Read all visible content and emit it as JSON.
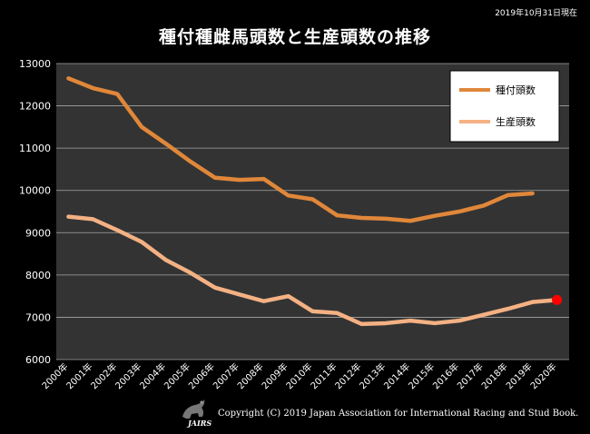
{
  "date_note": "2019年10月31日現在",
  "footer": {
    "copyright": "Copyright (C) 2019 Japan Association for International Racing and Stud Book.",
    "logo_text": "JAIRS"
  },
  "colors": {
    "background": "#000000",
    "plot_background": "#333333",
    "grid": "#a6a6a6",
    "series_1": "#e0873a",
    "series_2": "#f4b183",
    "highlight_point": "#ff0000"
  },
  "chart_data": {
    "type": "line",
    "title": "種付種雌馬頭数と生産頭数の推移",
    "xlabel": "",
    "ylabel": "",
    "categories": [
      "2000年",
      "2001年",
      "2002年",
      "2003年",
      "2004年",
      "2005年",
      "2006年",
      "2007年",
      "2008年",
      "2009年",
      "2010年",
      "2011年",
      "2012年",
      "2013年",
      "2014年",
      "2015年",
      "2016年",
      "2017年",
      "2018年",
      "2019年",
      "2020年"
    ],
    "ylim": [
      6000,
      13000
    ],
    "yticks": [
      6000,
      7000,
      8000,
      9000,
      10000,
      11000,
      12000,
      13000
    ],
    "grid": true,
    "legend_position": "top-right",
    "series": [
      {
        "name": "種付頭数",
        "color": "#e0873a",
        "values": [
          12650,
          12420,
          12280,
          11500,
          11100,
          10680,
          10300,
          10250,
          10270,
          9880,
          9790,
          9410,
          9350,
          9330,
          9280,
          9400,
          9500,
          9640,
          9890,
          9930,
          null
        ]
      },
      {
        "name": "生産頭数",
        "color": "#f4b183",
        "values": [
          9380,
          9320,
          9060,
          8780,
          8350,
          8050,
          7700,
          7540,
          7380,
          7500,
          7140,
          7100,
          6840,
          6860,
          6920,
          6860,
          6920,
          7060,
          7200,
          7360,
          7410
        ]
      }
    ],
    "highlight": {
      "category": "2020年",
      "value": 7410,
      "color": "#ff0000"
    }
  }
}
